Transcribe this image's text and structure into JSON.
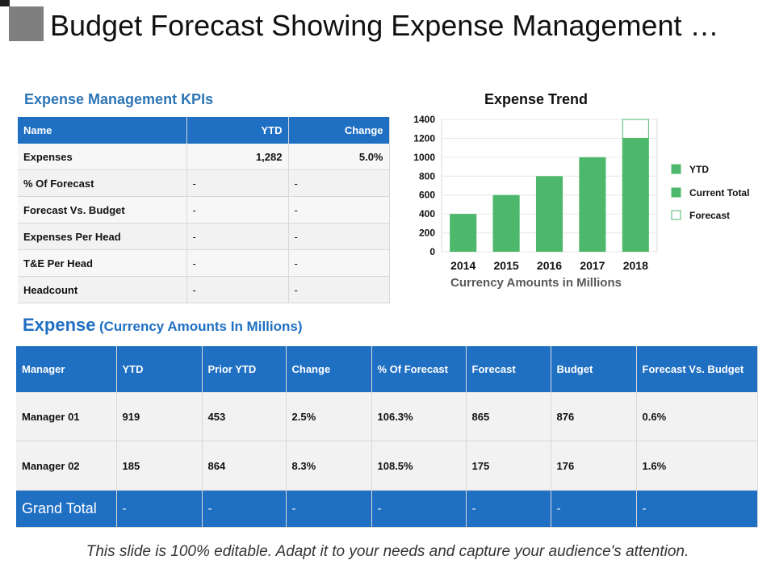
{
  "title": "Budget Forecast Showing Expense Management …",
  "kpi": {
    "heading": "Expense Management KPIs",
    "headers": [
      "Name",
      "YTD",
      "Change"
    ],
    "rows": [
      [
        "Expenses",
        "1,282",
        "5.0%"
      ],
      [
        "% Of Forecast",
        "-",
        "-"
      ],
      [
        "Forecast Vs. Budget",
        "-",
        "-"
      ],
      [
        "Expenses Per Head",
        "-",
        "-"
      ],
      [
        "T&E Per Head",
        "-",
        "-"
      ],
      [
        "Headcount",
        "-",
        "-"
      ]
    ]
  },
  "chart_data": {
    "type": "bar",
    "title": "Expense Trend",
    "categories": [
      "2014",
      "2015",
      "2016",
      "2017",
      "2018"
    ],
    "series": [
      {
        "name": "YTD",
        "values": [
          400,
          600,
          800,
          1000,
          1200
        ]
      },
      {
        "name": "Current Total",
        "values": [
          400,
          600,
          800,
          1000,
          1200
        ]
      },
      {
        "name": "Forecast",
        "values": [
          0,
          0,
          0,
          0,
          200
        ]
      }
    ],
    "xlabel": "Currency Amounts in Millions",
    "ylabel": "",
    "ylim": [
      0,
      1400
    ],
    "yticks": [
      "0",
      "200",
      "400",
      "600",
      "800",
      "1000",
      "1200",
      "1400"
    ],
    "legend": [
      "YTD",
      "Current Total",
      "Forecast"
    ],
    "colors": {
      "bar": "#4db86b",
      "forecast_border": "#4db86b",
      "grid": "#e6e6e6"
    }
  },
  "expense": {
    "heading_main": "Expense",
    "heading_sub": "(Currency Amounts In Millions)",
    "headers": [
      "Manager",
      "YTD",
      "Prior YTD",
      "Change",
      "% Of Forecast",
      "Forecast",
      "Budget",
      "Forecast Vs. Budget"
    ],
    "rows": [
      [
        "Manager 01",
        "919",
        "453",
        "2.5%",
        "106.3%",
        "865",
        "876",
        "0.6%"
      ],
      [
        "Manager 02",
        "185",
        "864",
        "8.3%",
        "108.5%",
        "175",
        "176",
        "1.6%"
      ]
    ],
    "total": [
      "Grand Total",
      "-",
      "-",
      "-",
      "-",
      "-",
      "-",
      "-"
    ]
  },
  "footer": "This slide is 100% editable. Adapt it to your needs and capture your audience's attention."
}
